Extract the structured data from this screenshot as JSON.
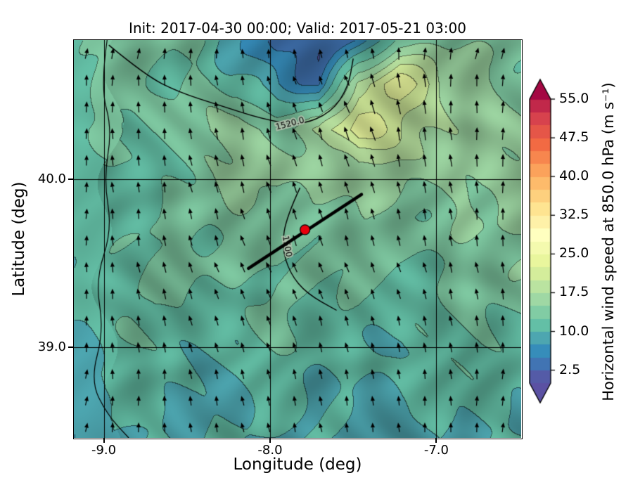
{
  "chart_data": {
    "type": "heatmap",
    "title": "Init: 2017-04-30 00:00; Valid: 2017-05-21 03:00",
    "xlabel": "Longitude (deg)",
    "ylabel": "Latitude (deg)",
    "xlim": [
      -9.18,
      -6.49
    ],
    "ylim": [
      38.46,
      40.83
    ],
    "x_ticks": [
      "-9.0",
      "-8.0",
      "-7.0"
    ],
    "x_tick_values": [
      -9.0,
      -8.0,
      -7.0
    ],
    "y_ticks": [
      "40.0",
      "39.0"
    ],
    "y_tick_values": [
      40.0,
      39.0
    ],
    "grid": true,
    "colorbar": {
      "label": "Horizontal wind speed at 850.0 hPa (m s⁻¹)",
      "ticks": [
        "55.0",
        "47.5",
        "40.0",
        "32.5",
        "25.0",
        "17.5",
        "10.0",
        "2.5"
      ],
      "tick_values": [
        55.0,
        47.5,
        40.0,
        32.5,
        25.0,
        17.5,
        10.0,
        2.5
      ],
      "vmin": 0,
      "vmax": 55,
      "band_width": 2.5,
      "extend": "both",
      "colormap_stops": [
        [
          0.0,
          "#5e4fa2"
        ],
        [
          5.75,
          "#3288bd"
        ],
        [
          11.5,
          "#66c2a5"
        ],
        [
          17.25,
          "#abdda4"
        ],
        [
          23.0,
          "#e6f598"
        ],
        [
          28.75,
          "#ffffbf"
        ],
        [
          34.5,
          "#fee08b"
        ],
        [
          40.25,
          "#fdae61"
        ],
        [
          46.0,
          "#f46d43"
        ],
        [
          51.75,
          "#d53e4f"
        ],
        [
          57.5,
          "#9e0142"
        ]
      ]
    },
    "wind_speed_grid": {
      "units": "m s-1",
      "lon": [
        -9.18,
        -8.94,
        -8.69,
        -8.45,
        -8.2,
        -7.96,
        -7.71,
        -7.47,
        -7.22,
        -6.98,
        -6.73,
        -6.49
      ],
      "lat": [
        40.83,
        40.57,
        40.3,
        40.04,
        39.78,
        39.51,
        39.25,
        38.99,
        38.72,
        38.46
      ],
      "values": [
        [
          12,
          13,
          13,
          12,
          8,
          4,
          3,
          6,
          14,
          15,
          14,
          13
        ],
        [
          12,
          13,
          13,
          13,
          11,
          7,
          5,
          20,
          24,
          18,
          16,
          14
        ],
        [
          12,
          13,
          13,
          14,
          16,
          15,
          17,
          24,
          20,
          18,
          17,
          15
        ],
        [
          11,
          12,
          12,
          13,
          15,
          16,
          15,
          17,
          16,
          16,
          17,
          16
        ],
        [
          11,
          12,
          12,
          13,
          14,
          15,
          14,
          14,
          13,
          14,
          15,
          15
        ],
        [
          10,
          12,
          14,
          13,
          13,
          14,
          13,
          13,
          12,
          13,
          14,
          14
        ],
        [
          10,
          11,
          13,
          12,
          12,
          13,
          12,
          12,
          11,
          12,
          13,
          13
        ],
        [
          9,
          11,
          12,
          11,
          11,
          12,
          11,
          11,
          10,
          11,
          12,
          12
        ],
        [
          9,
          10,
          11,
          10,
          10,
          11,
          10,
          10,
          10,
          10,
          11,
          11
        ],
        [
          8,
          10,
          10,
          9,
          10,
          10,
          9,
          9,
          9,
          10,
          10,
          10
        ]
      ]
    },
    "wind_direction_grid": {
      "units": "deg_from_north_toward",
      "values": [
        [
          10,
          5,
          -5,
          -20,
          5,
          15
        ],
        [
          5,
          -5,
          -15,
          -20,
          -5,
          5
        ],
        [
          0,
          -15,
          -25,
          -20,
          -15,
          -5
        ],
        [
          5,
          -10,
          -20,
          -15,
          -10,
          0
        ],
        [
          10,
          -5,
          -15,
          -10,
          -5,
          5
        ]
      ]
    },
    "cross_section": {
      "line": [
        [
          -8.13,
          39.47
        ],
        [
          -7.45,
          39.91
        ]
      ],
      "marker": {
        "lon": -7.79,
        "lat": 39.7,
        "color": "#e8000b"
      }
    },
    "contours": [
      {
        "label": "1520.0",
        "label_pos": [
          -7.88,
          40.33
        ],
        "label_rotation": -15,
        "points": [
          [
            -8.97,
            40.8
          ],
          [
            -8.75,
            40.62
          ],
          [
            -8.55,
            40.52
          ],
          [
            -8.3,
            40.44
          ],
          [
            -8.05,
            40.36
          ],
          [
            -7.82,
            40.32
          ],
          [
            -7.63,
            40.4
          ],
          [
            -7.53,
            40.55
          ],
          [
            -7.5,
            40.72
          ]
        ]
      },
      {
        "label": "1500",
        "label_pos": [
          -7.9,
          39.6
        ],
        "label_rotation": 80,
        "points": [
          [
            -7.82,
            39.95
          ],
          [
            -7.9,
            39.78
          ],
          [
            -7.93,
            39.6
          ],
          [
            -7.88,
            39.44
          ],
          [
            -7.78,
            39.32
          ],
          [
            -7.6,
            39.22
          ]
        ]
      },
      {
        "label": "",
        "label_pos": null,
        "label_rotation": 0,
        "points": [
          [
            -8.98,
            40.83
          ],
          [
            -9.02,
            40.55
          ],
          [
            -8.95,
            40.3
          ],
          [
            -9.0,
            40.0
          ],
          [
            -8.95,
            39.7
          ],
          [
            -9.05,
            39.4
          ],
          [
            -9.0,
            39.1
          ],
          [
            -9.08,
            38.8
          ],
          [
            -8.98,
            38.6
          ],
          [
            -8.85,
            38.46
          ]
        ]
      }
    ]
  }
}
